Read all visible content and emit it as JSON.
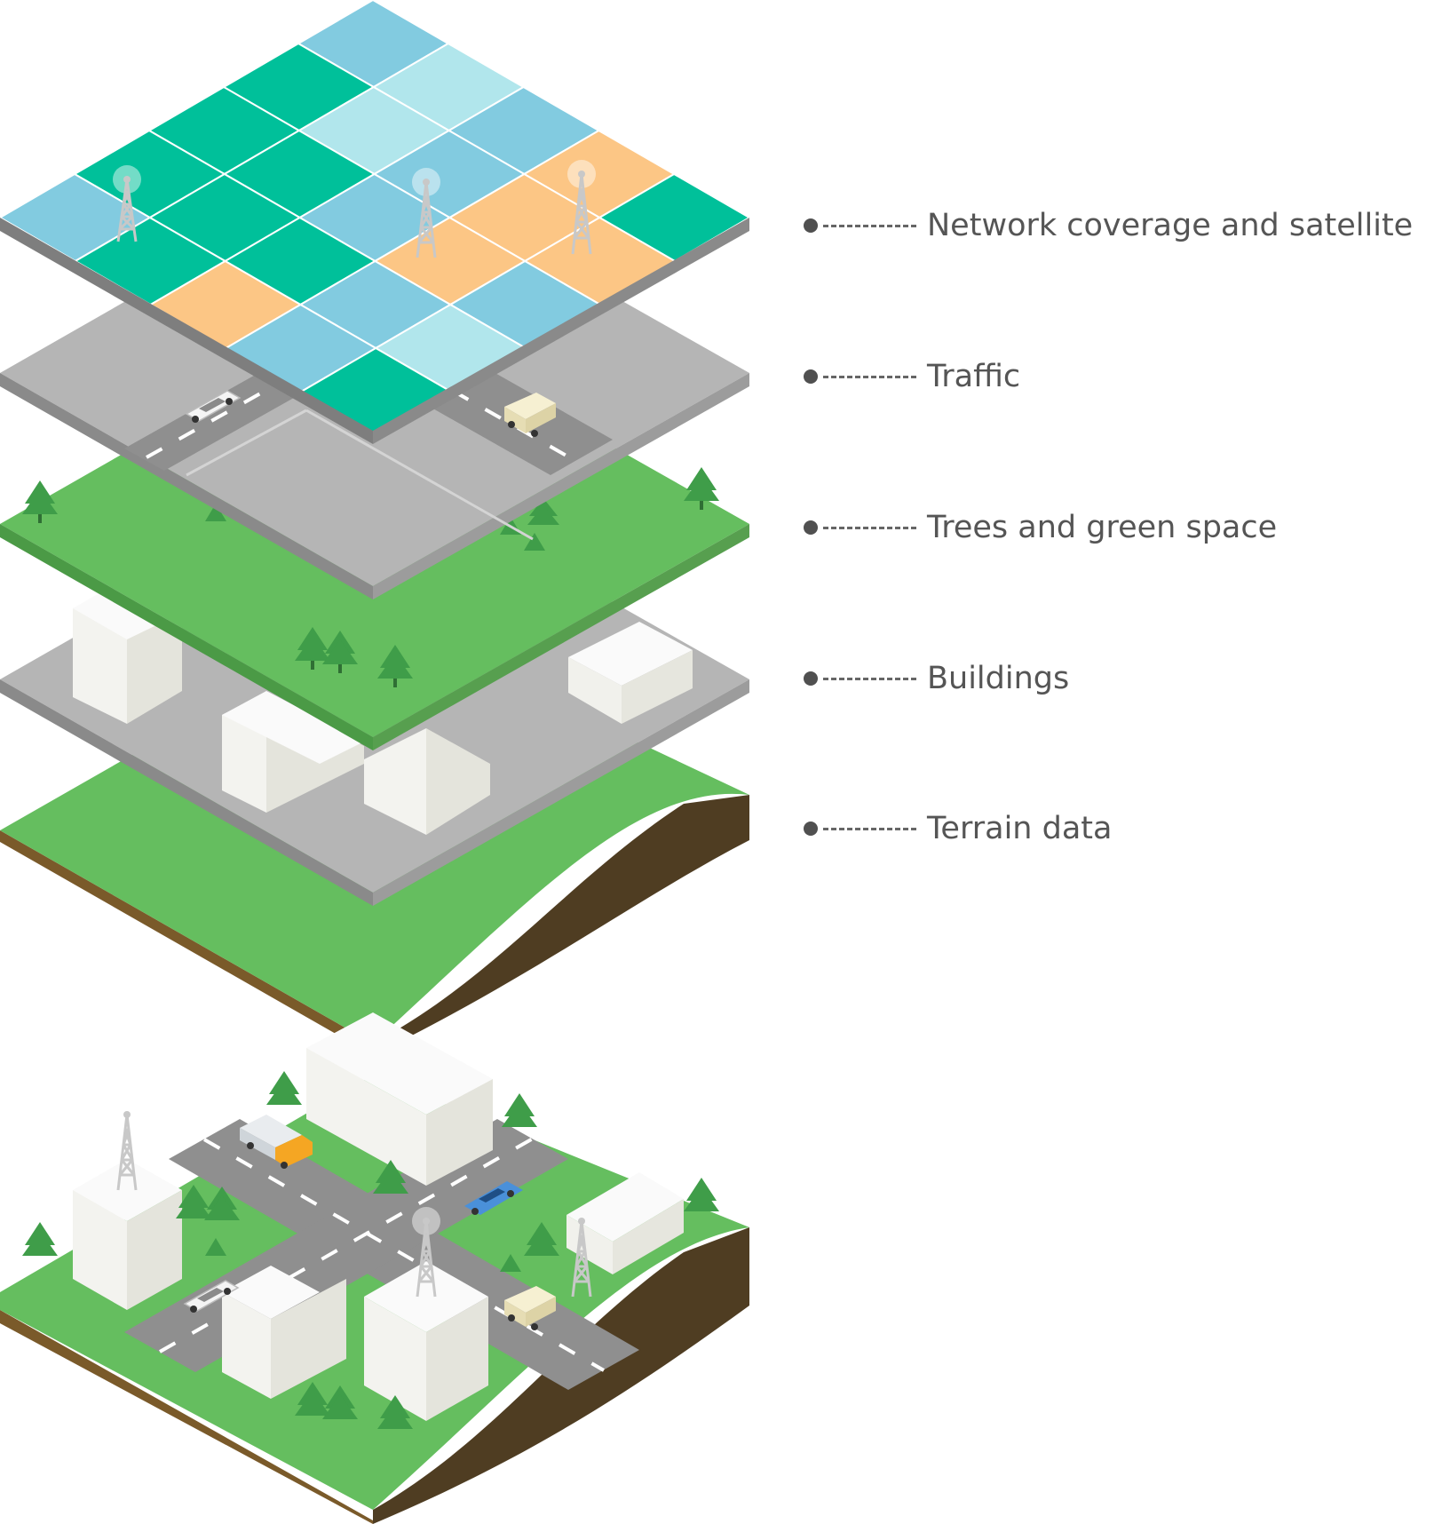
{
  "layers": [
    {
      "label": "Network coverage and satellite"
    },
    {
      "label": "Traffic"
    },
    {
      "label": "Trees and green space"
    },
    {
      "label": "Buildings"
    },
    {
      "label": "Terrain data"
    }
  ],
  "colors": {
    "teal": "#00c09a",
    "light_blue": "#82cbe0",
    "pale_blue": "#b1e6ec",
    "orange": "#fcc685",
    "road_gray": "#b5b5b5",
    "asphalt": "#8f8f8f",
    "grass": "#65be5f",
    "tree": "#3f9d49",
    "soil": "#4f3d22",
    "building": "#ecebe3"
  },
  "icons": [
    "tower-icon",
    "car-icon",
    "van-icon",
    "truck-icon",
    "tree-icon",
    "building-icon"
  ]
}
